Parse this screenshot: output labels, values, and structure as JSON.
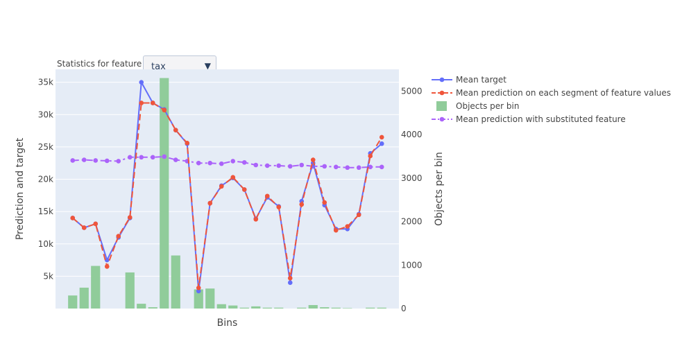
{
  "controls": {
    "feature_label": "Statistics for feature",
    "feature_value": "tax",
    "dropdown_icon": "triangle-down-icon"
  },
  "colors": {
    "plot_bg": "#e5ecf6",
    "grid": "#ffffff",
    "mean_target": "#636efa",
    "mean_prediction": "#ef553b",
    "bars": "#90cc9a",
    "substituted": "#ab63fa"
  },
  "chart_data": {
    "type": "line",
    "xlabel": "Bins",
    "ylabel": "Prediction and target",
    "y2label": "Objects per bin",
    "ylim": [
      0,
      37000
    ],
    "y2lim": [
      0,
      5500
    ],
    "yticks": [
      5000,
      10000,
      15000,
      20000,
      25000,
      30000,
      35000
    ],
    "ytick_labels": [
      "5k",
      "10k",
      "15k",
      "20k",
      "25k",
      "30k",
      "35k"
    ],
    "y2ticks": [
      0,
      1000,
      2000,
      3000,
      4000,
      5000
    ],
    "y2tick_labels": [
      "0",
      "1000",
      "2000",
      "3000",
      "4000",
      "5000"
    ],
    "x_count": 28,
    "legend_position": "top-right",
    "grid": true,
    "series": [
      {
        "name": "Mean target",
        "kind": "line-markers",
        "axis": "y",
        "x": [
          1,
          2,
          3,
          4,
          5,
          6,
          7,
          8,
          9,
          10,
          11,
          12,
          13,
          14,
          15,
          16,
          17,
          18,
          19,
          20,
          21,
          22,
          23,
          24,
          25,
          26,
          27,
          28
        ],
        "values": [
          14000,
          12500,
          13100,
          7500,
          11000,
          14000,
          35000,
          31800,
          30800,
          27600,
          25500,
          2700,
          16300,
          19000,
          20200,
          18400,
          13900,
          17200,
          15800,
          4000,
          16600,
          22500,
          16000,
          12300,
          12300,
          14600,
          24000,
          25500
        ]
      },
      {
        "name": "Mean prediction on each segment of feature values",
        "kind": "dashed-markers",
        "axis": "y",
        "x": [
          1,
          2,
          3,
          4,
          5,
          6,
          7,
          8,
          9,
          10,
          11,
          12,
          13,
          14,
          15,
          16,
          17,
          18,
          19,
          20,
          21,
          22,
          23,
          24,
          25,
          26,
          27,
          28
        ],
        "values": [
          14000,
          12500,
          13100,
          6500,
          11200,
          14100,
          31800,
          31800,
          30700,
          27600,
          25600,
          3200,
          16300,
          18900,
          20300,
          18400,
          13800,
          17400,
          15700,
          4700,
          16100,
          23000,
          16400,
          12100,
          12700,
          14500,
          23600,
          26500
        ]
      },
      {
        "name": "Objects per bin",
        "kind": "bar",
        "axis": "y2",
        "x": [
          1,
          2,
          3,
          4,
          5,
          6,
          7,
          8,
          9,
          10,
          11,
          12,
          13,
          14,
          15,
          16,
          17,
          18,
          19,
          20,
          21,
          22,
          23,
          24,
          25,
          26,
          27,
          28
        ],
        "values": [
          300,
          480,
          980,
          0,
          0,
          830,
          110,
          30,
          5300,
          1220,
          0,
          440,
          460,
          100,
          70,
          20,
          50,
          20,
          20,
          0,
          20,
          80,
          30,
          20,
          10,
          0,
          20,
          20
        ]
      },
      {
        "name": "Mean prediction with substituted feature",
        "kind": "dashdot-markers",
        "axis": "y",
        "x": [
          1,
          2,
          3,
          4,
          5,
          6,
          7,
          8,
          9,
          10,
          11,
          12,
          13,
          14,
          15,
          16,
          17,
          18,
          19,
          20,
          21,
          22,
          23,
          24,
          25,
          26,
          27,
          28
        ],
        "values": [
          22900,
          23000,
          22900,
          22850,
          22800,
          23400,
          23400,
          23400,
          23500,
          23000,
          22800,
          22500,
          22500,
          22400,
          22800,
          22600,
          22200,
          22100,
          22100,
          22000,
          22200,
          22000,
          22000,
          21900,
          21800,
          21800,
          21900,
          21900
        ]
      }
    ]
  }
}
